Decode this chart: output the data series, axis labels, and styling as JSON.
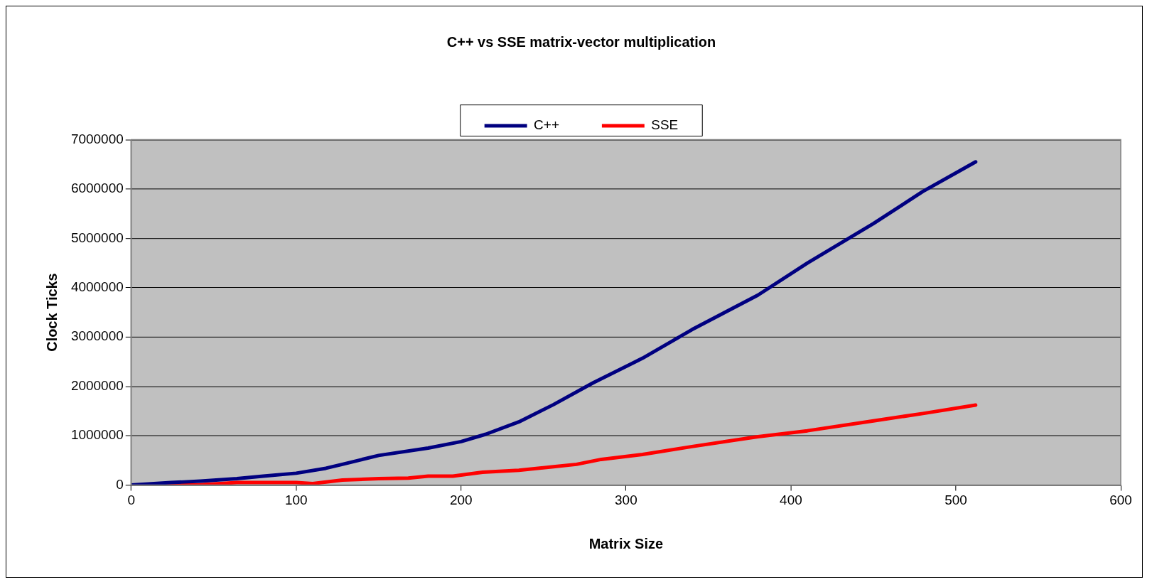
{
  "chart_data": {
    "type": "line",
    "title": "C++ vs SSE matrix-vector multiplication",
    "xlabel": "Matrix Size",
    "ylabel": "Clock Ticks",
    "xlim": [
      0,
      600
    ],
    "xticks": [
      0,
      100,
      200,
      300,
      400,
      500,
      600
    ],
    "ylim": [
      0,
      7000000
    ],
    "yticks": [
      0,
      1000000,
      2000000,
      3000000,
      4000000,
      5000000,
      6000000,
      7000000
    ],
    "grid": "y",
    "legend": "top",
    "marker": "none",
    "line_style": "solid",
    "series": [
      {
        "name": "C++",
        "color": "#000080",
        "x": [
          0,
          24,
          42,
          64,
          80,
          100,
          118,
          128,
          150,
          180,
          200,
          215,
          235,
          256,
          280,
          310,
          340,
          380,
          410,
          450,
          480,
          512
        ],
        "values": [
          0,
          50000,
          80000,
          130000,
          180000,
          240000,
          340000,
          420000,
          600000,
          750000,
          880000,
          1030000,
          1280000,
          1630000,
          2070000,
          2570000,
          3150000,
          3850000,
          4500000,
          5300000,
          5950000,
          6550000
        ]
      },
      {
        "name": "SSE",
        "color": "#ff0000",
        "x": [
          0,
          40,
          64,
          100,
          110,
          128,
          150,
          168,
          180,
          195,
          213,
          235,
          256,
          270,
          285,
          310,
          340,
          380,
          410,
          450,
          480,
          512
        ],
        "values": [
          0,
          0,
          50000,
          50000,
          30000,
          100000,
          130000,
          140000,
          180000,
          180000,
          260000,
          300000,
          370000,
          420000,
          520000,
          620000,
          780000,
          980000,
          1100000,
          1300000,
          1450000,
          1620000
        ]
      }
    ]
  }
}
